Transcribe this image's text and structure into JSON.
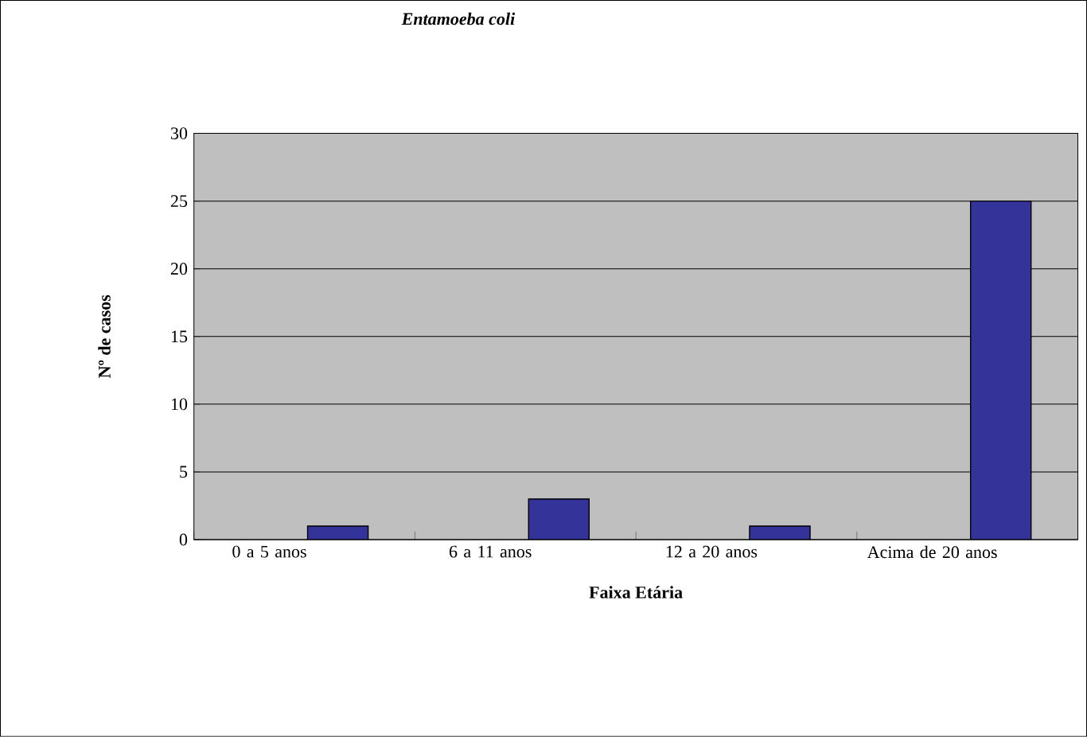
{
  "chart_data": {
    "type": "bar",
    "title": "Entamoeba coli",
    "xlabel": "Faixa Etária",
    "ylabel": "Nº de casos",
    "categories": [
      "0 a 5 anos",
      "6 a 11 anos",
      "12 a 20 anos",
      "Acima de 20 anos"
    ],
    "values": [
      1,
      3,
      1,
      25
    ],
    "color": "#333399",
    "ylim": [
      0,
      30
    ],
    "yticks": [
      0,
      5,
      10,
      15,
      20,
      25,
      30
    ],
    "grid": "y"
  }
}
